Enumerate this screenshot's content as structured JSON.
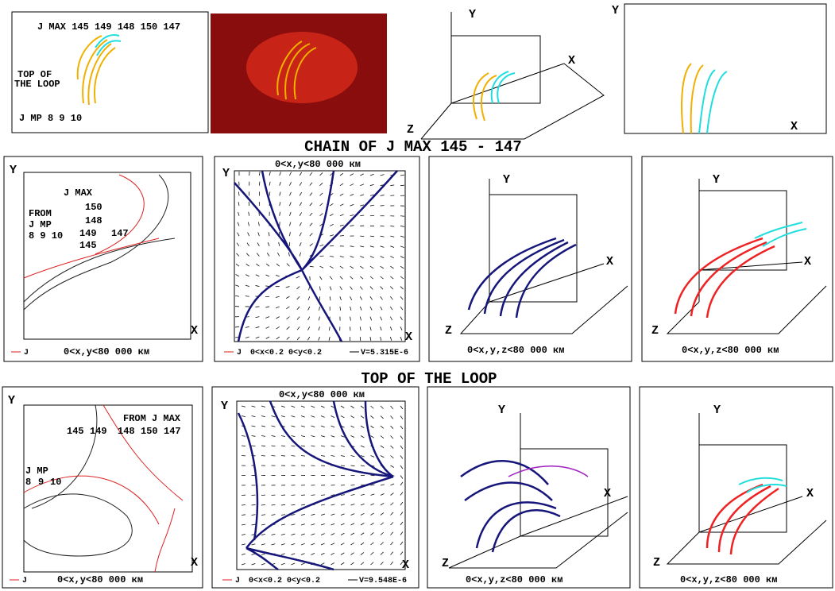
{
  "row1": {
    "panel1": {
      "jmax": "J MAX 145 149 148 150 147",
      "top1": "TOP OF",
      "top2": "THE LOOP",
      "jmp": "J MP 8 9 10"
    },
    "panel3": {
      "y": "Y",
      "x": "X",
      "z": "Z"
    },
    "panel4": {
      "y": "Y",
      "x": "X"
    }
  },
  "heading1": "CHAIN OF J MAX 145 - 147",
  "row2": {
    "panel1": {
      "y": "Y",
      "x": "X",
      "jmax": "J MAX",
      "l150": "150",
      "l148": "148",
      "l149": "149",
      "l145": "145",
      "l147": "147",
      "from": "FROM",
      "jmp": "J MP",
      "mp": "8 9 10",
      "legend": "J",
      "range": "0<x,y<80 000 км"
    },
    "panel2": {
      "top": "0<x,y<80 000 км",
      "y": "Y",
      "x": "X",
      "legend": "J",
      "domain": "0<x<0.2 0<y<0.2",
      "v": "V=5.315E-6"
    },
    "panel3": {
      "y": "Y",
      "x": "X",
      "z": "Z",
      "range": "0<x,y,z<80 000 км"
    },
    "panel4": {
      "y": "Y",
      "x": "X",
      "z": "Z",
      "range": "0<x,y,z<80 000 км"
    }
  },
  "heading2": "TOP OF THE LOOP",
  "row3": {
    "panel1": {
      "y": "Y",
      "x": "X",
      "l145": "145",
      "l149": "149",
      "from": "FROM J MAX",
      "l148": "148",
      "l150": "150",
      "l147": "147",
      "jmp": "J MP",
      "l8": "8",
      "l9": "9",
      "l10": "10",
      "legend": "J",
      "range": "0<x,y<80 000 км"
    },
    "panel2": {
      "top": "0<x,y<80 000 км",
      "y": "Y",
      "x": "X",
      "legend": "J",
      "domain": "0<x<0.2 0<y<0.2",
      "v": "V=9.548E-6"
    },
    "panel3": {
      "y": "Y",
      "x": "X",
      "z": "Z",
      "range": "0<x,y,z<80 000 км"
    },
    "panel4": {
      "y": "Y",
      "x": "X",
      "z": "Z",
      "range": "0<x,y,z<80 000 км"
    }
  }
}
